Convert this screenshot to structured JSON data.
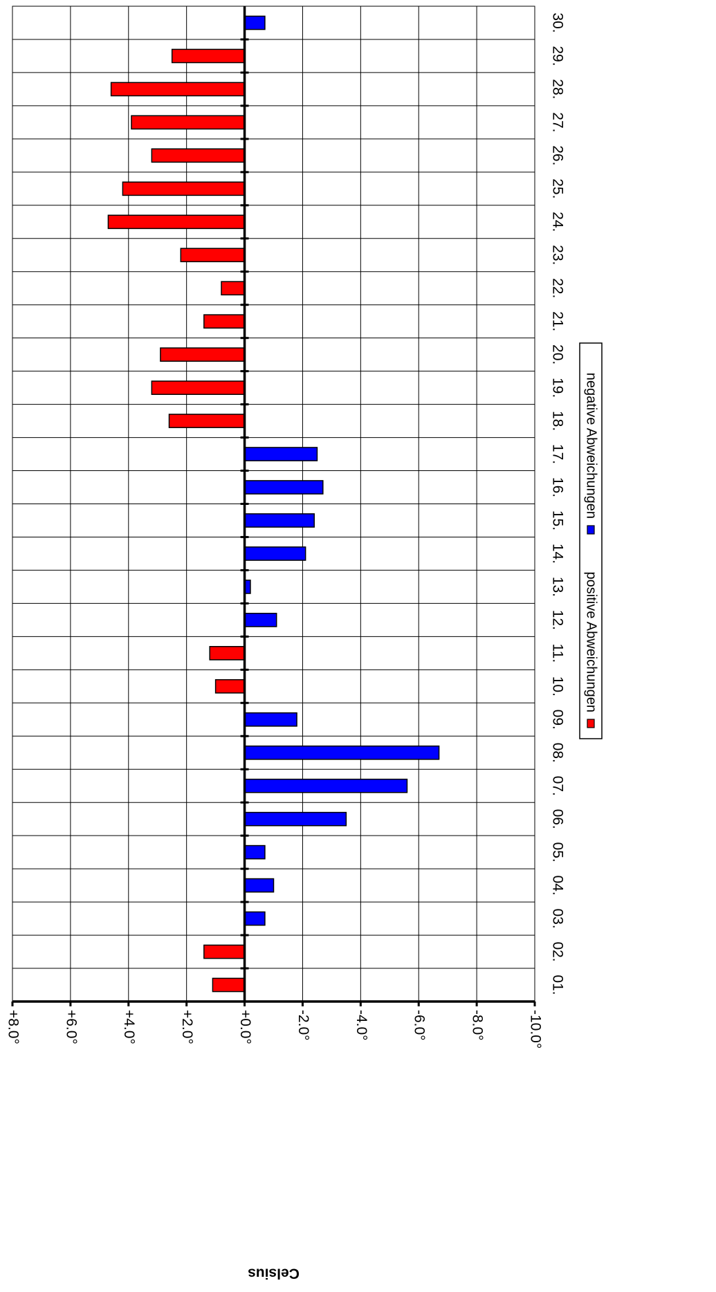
{
  "chart_data": {
    "type": "bar",
    "orientation": "horizontal",
    "rotated": "page rotated 90 degrees clockwise",
    "ylabel": "Celsius",
    "xlabel": "",
    "categories": [
      "01.",
      "02.",
      "03.",
      "04.",
      "05.",
      "06.",
      "07.",
      "08.",
      "09.",
      "10.",
      "11.",
      "12.",
      "13.",
      "14.",
      "15.",
      "16.",
      "17.",
      "18.",
      "19.",
      "20.",
      "21.",
      "22.",
      "23.",
      "24.",
      "25.",
      "26.",
      "27.",
      "28.",
      "29.",
      "30."
    ],
    "values": [
      1.1,
      1.4,
      -0.7,
      -1.0,
      -0.7,
      -3.5,
      -5.6,
      -6.7,
      -1.8,
      1.0,
      1.2,
      -1.1,
      -0.2,
      -2.1,
      -2.4,
      -2.7,
      -2.5,
      2.6,
      3.2,
      2.9,
      1.4,
      0.8,
      2.2,
      4.7,
      4.2,
      3.2,
      3.9,
      4.6,
      2.5,
      -0.7
    ],
    "ylim": [
      -10,
      8
    ],
    "ticks": [
      {
        "value": 8,
        "label": "+8.0°"
      },
      {
        "value": 6,
        "label": "+6.0°"
      },
      {
        "value": 4,
        "label": "+4.0°"
      },
      {
        "value": 2,
        "label": "+2.0°"
      },
      {
        "value": 0,
        "label": "+0.0°"
      },
      {
        "value": -2,
        "label": "-2.0°"
      },
      {
        "value": -4,
        "label": "-4.0°"
      },
      {
        "value": -6,
        "label": "-6.0°"
      },
      {
        "value": -8,
        "label": "-8.0°"
      },
      {
        "value": -10,
        "label": "-10.0°"
      }
    ],
    "series": [
      {
        "name": "positive Abweichungen",
        "color": "#ff0000",
        "rule": "value > 0"
      },
      {
        "name": "negative Abweichungen",
        "color": "#0000ff",
        "rule": "value < 0"
      }
    ],
    "grid": true,
    "legend": "bottom"
  }
}
